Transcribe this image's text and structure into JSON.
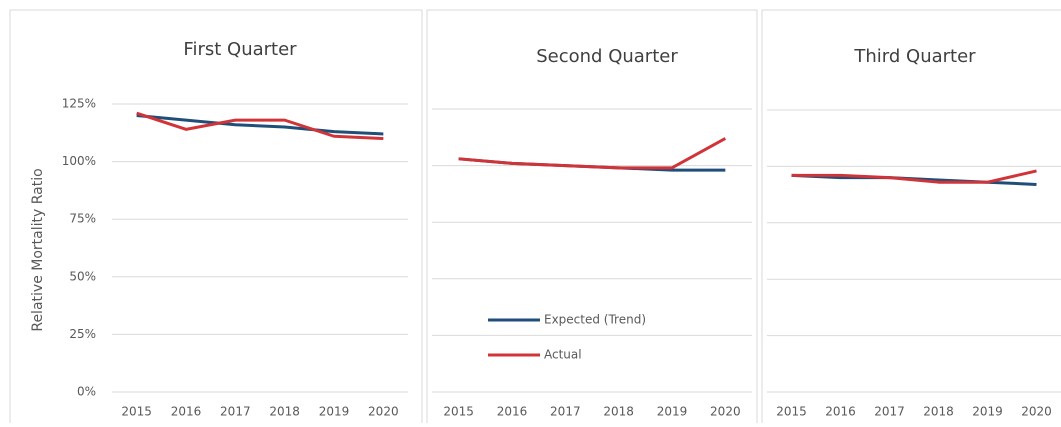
{
  "chart_data": [
    {
      "type": "line",
      "title": "First Quarter",
      "y_label": "Relative Mortality Ratio",
      "categories": [
        "2015",
        "2016",
        "2017",
        "2018",
        "2019",
        "2020"
      ],
      "series": [
        {
          "name": "Expected (Trend)",
          "color": "#1f4e79",
          "values": [
            120,
            118,
            116,
            115,
            113,
            112
          ]
        },
        {
          "name": "Actual",
          "color": "#d13438",
          "values": [
            121,
            114,
            118,
            118,
            111,
            110
          ]
        }
      ],
      "ylim": [
        0,
        125
      ],
      "yticks": [
        {
          "value": 0,
          "label": "0%"
        },
        {
          "value": 25,
          "label": "25%"
        },
        {
          "value": 50,
          "label": "50%"
        },
        {
          "value": 75,
          "label": "75%"
        },
        {
          "value": 100,
          "label": "100%"
        },
        {
          "value": 125,
          "label": "125%"
        }
      ],
      "grid": true
    },
    {
      "type": "line",
      "title": "Second Quarter",
      "categories": [
        "2015",
        "2016",
        "2017",
        "2018",
        "2019",
        "2020"
      ],
      "series": [
        {
          "name": "Expected (Trend)",
          "color": "#1f4e79",
          "values": [
            103,
            101,
            100,
            99,
            98,
            98
          ]
        },
        {
          "name": "Actual",
          "color": "#d13438",
          "values": [
            103,
            101,
            100,
            99,
            99,
            112
          ]
        }
      ],
      "ylim": [
        0,
        125
      ],
      "gridlines": [
        0,
        25,
        50,
        75,
        100,
        125
      ],
      "grid": true,
      "legend": "bottom-left"
    },
    {
      "type": "line",
      "title": "Third Quarter",
      "categories": [
        "2015",
        "2016",
        "2017",
        "2018",
        "2019",
        "2020"
      ],
      "series": [
        {
          "name": "Expected (Trend)",
          "color": "#1f4e79",
          "values": [
            96,
            95,
            95,
            94,
            93,
            92
          ]
        },
        {
          "name": "Actual",
          "color": "#d13438",
          "values": [
            96,
            96,
            95,
            93,
            93,
            98
          ]
        }
      ],
      "ylim": [
        0,
        125
      ],
      "gridlines": [
        0,
        25,
        50,
        75,
        100,
        125
      ],
      "grid": true
    }
  ]
}
